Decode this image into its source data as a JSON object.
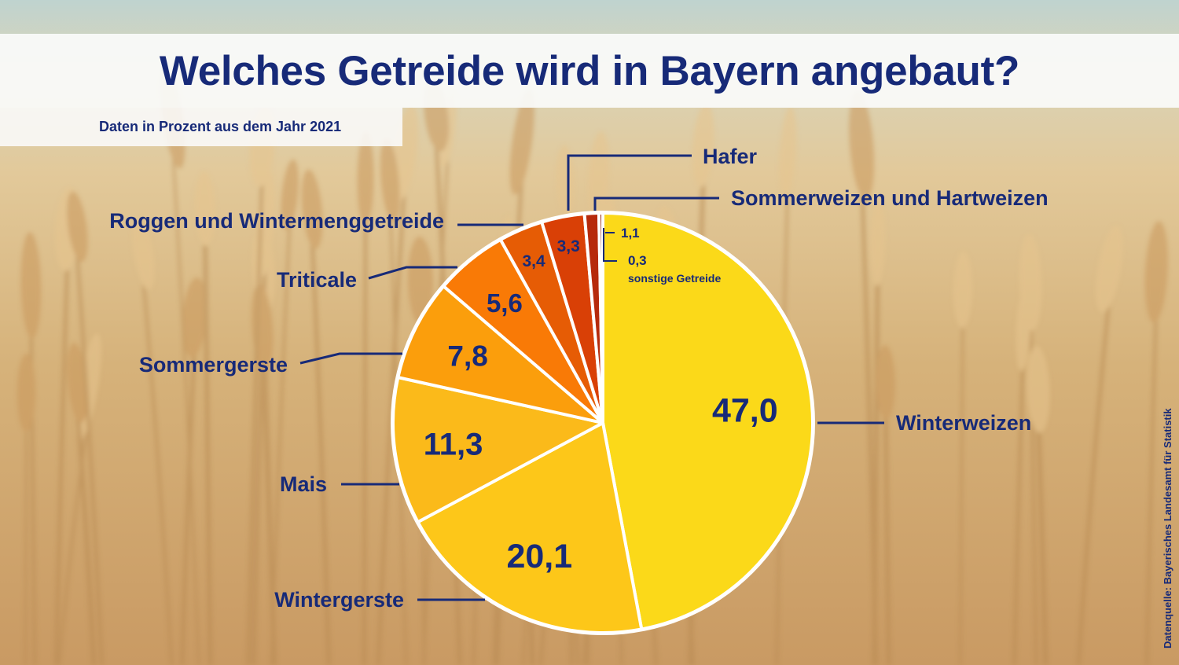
{
  "header": {
    "title": "Welches Getreide wird in Bayern angebaut?",
    "subtitle": "Daten in Prozent aus dem Jahr 2021"
  },
  "source": "Datenquelle: Bayerisches Landesamt für Statistik",
  "colors": {
    "navy": "#172a78",
    "background": "#d9b98a"
  },
  "chart_data": {
    "type": "pie",
    "slices": [
      {
        "label": "Winterweizen",
        "value": 47.0,
        "value_label": "47,0",
        "color": "#fbd919"
      },
      {
        "label": "Wintergerste",
        "value": 20.1,
        "value_label": "20,1",
        "color": "#fdc719"
      },
      {
        "label": "Mais",
        "value": 11.3,
        "value_label": "11,3",
        "color": "#fbba1a"
      },
      {
        "label": "Sommergerste",
        "value": 7.8,
        "value_label": "7,8",
        "color": "#fb9e0c"
      },
      {
        "label": "Triticale",
        "value": 5.6,
        "value_label": "5,6",
        "color": "#f97a06"
      },
      {
        "label": "Roggen und Wintermenggetreide",
        "value": 3.4,
        "value_label": "3,4",
        "color": "#e65c05"
      },
      {
        "label": "Hafer",
        "value": 3.3,
        "value_label": "3,3",
        "color": "#d94006"
      },
      {
        "label": "Sommerweizen und Hartweizen",
        "value": 1.1,
        "value_label": "1,1",
        "color": "#b62a0c"
      },
      {
        "label": "sonstige Getreide",
        "value": 0.3,
        "value_label": "0,3",
        "color": "#8f1d0c"
      }
    ]
  }
}
